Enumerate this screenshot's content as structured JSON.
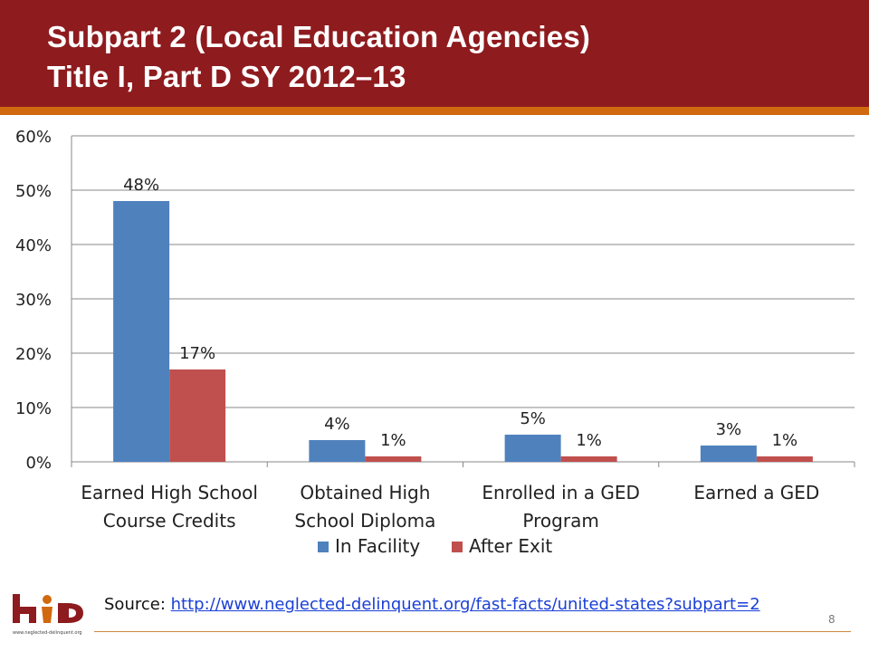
{
  "slide": {
    "title_line1": "Subpart 2 (Local Education Agencies)",
    "title_line2": "Title I, Part D SY 2012–13",
    "source_label": "Source:",
    "source_url": "http://www.neglected-delinquent.org/fast-facts/united-states?subpart=2",
    "page_number": "8",
    "logo_text": "www.neglected-delinquent.org",
    "colors": {
      "header": "#8e1b1e",
      "stripe": "#d0690f",
      "in_facility": "#4f81bd",
      "after_exit": "#c0504d"
    }
  },
  "chart_data": {
    "type": "bar",
    "categories": [
      [
        "Earned High School",
        "Course Credits"
      ],
      [
        "Obtained High",
        "School Diploma"
      ],
      [
        "Enrolled in a GED",
        "Program"
      ],
      [
        "Earned a GED"
      ]
    ],
    "series": [
      {
        "name": "In Facility",
        "values": [
          48,
          4,
          5,
          3
        ],
        "labels": [
          "48%",
          "4%",
          "5%",
          "3%"
        ],
        "color": "#4f81bd"
      },
      {
        "name": "After Exit",
        "values": [
          17,
          1,
          1,
          1
        ],
        "labels": [
          "17%",
          "1%",
          "1%",
          "1%"
        ],
        "color": "#c0504d"
      }
    ],
    "yticks": [
      "0%",
      "10%",
      "20%",
      "30%",
      "40%",
      "50%",
      "60%"
    ],
    "ylim": [
      0,
      60
    ],
    "grid": true,
    "legend": "bottom"
  }
}
